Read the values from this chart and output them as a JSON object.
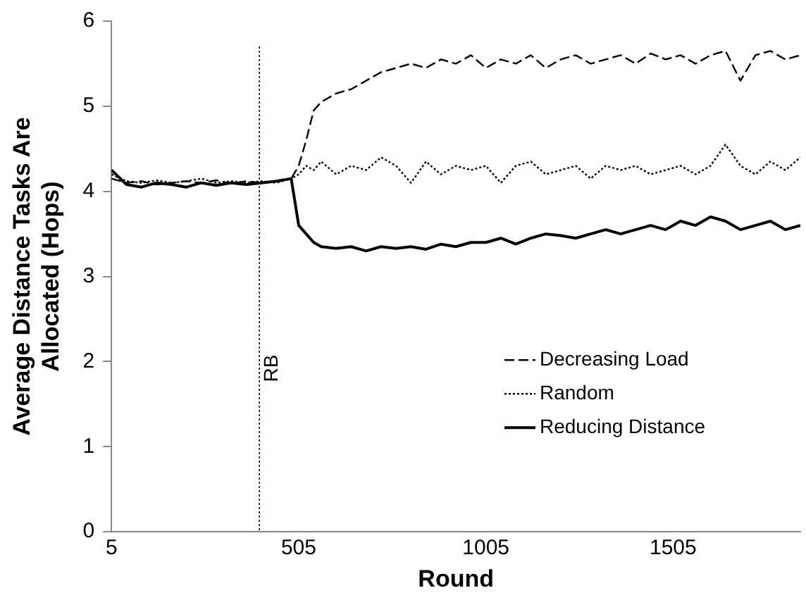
{
  "chart_data": {
    "type": "line",
    "xlabel": "Round",
    "ylabel": "Average Distance Tasks Are Allocated (Hops)",
    "x": [
      5,
      45,
      85,
      125,
      165,
      205,
      245,
      285,
      325,
      365,
      405,
      445,
      485,
      505,
      525,
      545,
      565,
      605,
      645,
      685,
      725,
      765,
      805,
      845,
      885,
      925,
      965,
      1005,
      1045,
      1085,
      1125,
      1165,
      1205,
      1245,
      1285,
      1325,
      1365,
      1405,
      1445,
      1485,
      1525,
      1565,
      1605,
      1645,
      1685,
      1725,
      1765,
      1805,
      1845
    ],
    "series": [
      {
        "name": "Decreasing Load",
        "color": "#000000",
        "line_style": "dashed",
        "values": [
          4.15,
          4.1,
          4.12,
          4.08,
          4.1,
          4.12,
          4.1,
          4.13,
          4.09,
          4.12,
          4.1,
          4.11,
          4.15,
          4.3,
          4.6,
          4.95,
          5.05,
          5.15,
          5.2,
          5.3,
          5.4,
          5.45,
          5.5,
          5.45,
          5.55,
          5.5,
          5.6,
          5.45,
          5.55,
          5.5,
          5.6,
          5.45,
          5.55,
          5.6,
          5.5,
          5.55,
          5.6,
          5.5,
          5.62,
          5.55,
          5.6,
          5.5,
          5.6,
          5.65,
          5.3,
          5.6,
          5.65,
          5.55,
          5.6
        ]
      },
      {
        "name": "Random",
        "color": "#000000",
        "line_style": "dotted",
        "values": [
          4.2,
          4.12,
          4.1,
          4.13,
          4.1,
          4.12,
          4.15,
          4.1,
          4.12,
          4.1,
          4.12,
          4.1,
          4.15,
          4.2,
          4.3,
          4.25,
          4.35,
          4.2,
          4.3,
          4.25,
          4.4,
          4.3,
          4.1,
          4.35,
          4.2,
          4.3,
          4.25,
          4.3,
          4.1,
          4.3,
          4.35,
          4.2,
          4.25,
          4.3,
          4.15,
          4.3,
          4.25,
          4.3,
          4.2,
          4.25,
          4.3,
          4.2,
          4.3,
          4.55,
          4.3,
          4.2,
          4.35,
          4.25,
          4.4
        ]
      },
      {
        "name": "Reducing Distance",
        "color": "#000000",
        "line_style": "solid",
        "values": [
          4.25,
          4.08,
          4.05,
          4.1,
          4.08,
          4.05,
          4.1,
          4.07,
          4.1,
          4.08,
          4.1,
          4.12,
          4.15,
          3.6,
          3.5,
          3.4,
          3.35,
          3.33,
          3.35,
          3.3,
          3.35,
          3.33,
          3.35,
          3.32,
          3.38,
          3.35,
          3.4,
          3.4,
          3.45,
          3.38,
          3.45,
          3.5,
          3.48,
          3.45,
          3.5,
          3.55,
          3.5,
          3.55,
          3.6,
          3.55,
          3.65,
          3.6,
          3.7,
          3.65,
          3.55,
          3.6,
          3.65,
          3.55,
          3.6
        ]
      }
    ],
    "xlim": [
      5,
      1845
    ],
    "xticks": [
      5,
      505,
      1005,
      1505
    ],
    "ylim": [
      0,
      6
    ],
    "yticks": [
      0,
      1,
      2,
      3,
      4,
      5,
      6
    ],
    "ref_lines": [
      {
        "axis": "x",
        "value": 400,
        "label": "RB",
        "line_style": "dotted"
      }
    ],
    "grid": false,
    "legend": "bottom right",
    "marker": "none"
  }
}
